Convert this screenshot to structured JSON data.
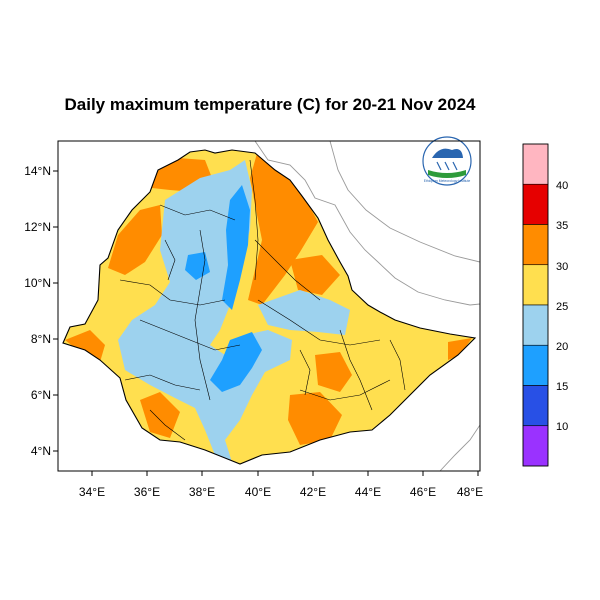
{
  "title": "Daily maximum temperature (C) for 20-21 Nov 2024",
  "axes": {
    "x_ticks": [
      "34°E",
      "36°E",
      "38°E",
      "40°E",
      "42°E",
      "44°E",
      "46°E",
      "48°E"
    ],
    "y_ticks": [
      "14°N",
      "12°N",
      "10°N",
      "8°N",
      "6°N",
      "4°N"
    ]
  },
  "colorbar": {
    "labels": [
      "40",
      "35",
      "30",
      "25",
      "20",
      "15",
      "10"
    ],
    "colors": [
      "#ffb6c1",
      "#e60000",
      "#ff8c00",
      "#ffdf4f",
      "#9dd2ee",
      "#1ea0ff",
      "#2850e6",
      "#9a32ff"
    ]
  },
  "logo": {
    "caption": "Ethiopian Meteorology Institute"
  }
}
